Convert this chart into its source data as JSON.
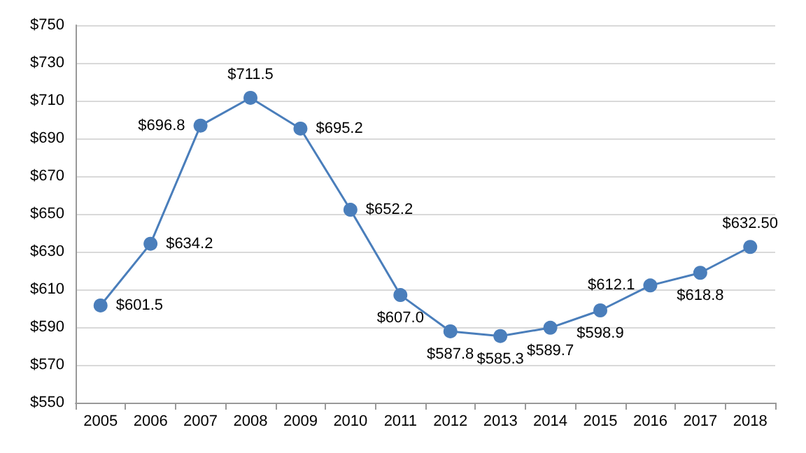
{
  "chart_data": {
    "type": "line",
    "categories": [
      "2005",
      "2006",
      "2007",
      "2008",
      "2009",
      "2010",
      "2011",
      "2012",
      "2013",
      "2014",
      "2015",
      "2016",
      "2017",
      "2018"
    ],
    "series": [
      {
        "color": "#4a7ebb",
        "values": [
          601.5,
          634.2,
          696.8,
          711.5,
          695.2,
          652.2,
          607.0,
          587.8,
          585.3,
          589.7,
          598.9,
          612.1,
          618.8,
          632.5
        ],
        "value_labels": [
          "$601.5",
          "$634.2",
          "$696.8",
          "$711.5",
          "$695.2",
          "$652.2",
          "$607.0",
          "$587.8",
          "$585.3",
          "$589.7",
          "$598.9",
          "$612.1",
          "$618.8",
          "$632.50"
        ]
      }
    ],
    "ylim": [
      550,
      750
    ],
    "yticks": [
      {
        "value": 550,
        "label": "$550"
      },
      {
        "value": 570,
        "label": "$570"
      },
      {
        "value": 590,
        "label": "$590"
      },
      {
        "value": 610,
        "label": "$610"
      },
      {
        "value": 630,
        "label": "$630"
      },
      {
        "value": 650,
        "label": "$650"
      },
      {
        "value": 670,
        "label": "$670"
      },
      {
        "value": 690,
        "label": "$690"
      },
      {
        "value": 710,
        "label": "$710"
      },
      {
        "value": 730,
        "label": "$730"
      },
      {
        "value": 750,
        "label": "$750"
      }
    ],
    "grid": "y",
    "marker": "circle",
    "line_style": "solid"
  }
}
